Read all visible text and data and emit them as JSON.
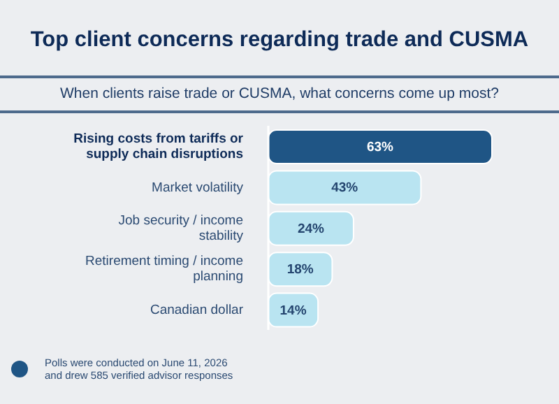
{
  "chart_data": {
    "type": "bar",
    "orientation": "horizontal",
    "title": "Top client concerns regarding trade and CUSMA",
    "subtitle": "When clients raise trade or CUSMA, what concerns come up most?",
    "categories": [
      "Rising costs from tariffs or supply chain disruptions",
      "Market volatility",
      "Job security / income stability",
      "Retirement timing / income planning",
      "Canadian dollar"
    ],
    "values": [
      63,
      43,
      24,
      18,
      14
    ],
    "colors": [
      "#1f5585",
      "#b9e4f1",
      "#b9e4f1",
      "#b9e4f1",
      "#b9e4f1"
    ],
    "value_labels": [
      "63%",
      "43%",
      "24%",
      "18%",
      "14%"
    ],
    "annotations": [
      "Polls were conducted on June 11, 2026 and drew 585 verified advisor responses"
    ]
  }
}
